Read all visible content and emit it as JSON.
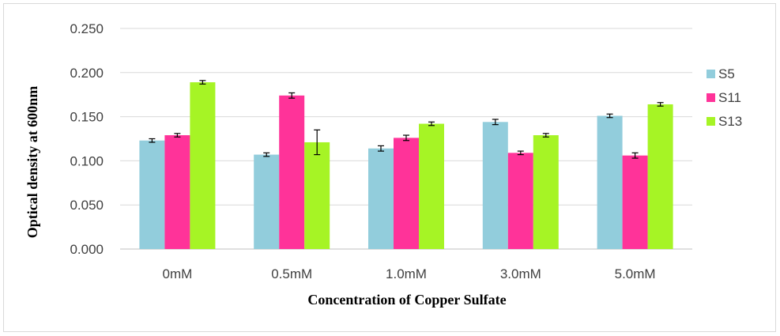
{
  "chart_data": {
    "type": "bar",
    "title": "",
    "xlabel": "Concentration of Copper Sulfate",
    "ylabel": "Optical density at 600nm",
    "categories": [
      "0mM",
      "0.5mM",
      "1.0mM",
      "3.0mM",
      "5.0mM"
    ],
    "ylim": [
      0,
      0.25
    ],
    "yticks": [
      "0.000",
      "0.050",
      "0.100",
      "0.150",
      "0.200",
      "0.250"
    ],
    "grid": true,
    "legend_position": "right",
    "series": [
      {
        "name": "S5",
        "color": "#92CDDC",
        "values": [
          0.123,
          0.107,
          0.114,
          0.144,
          0.151
        ],
        "errors": [
          0.002,
          0.002,
          0.003,
          0.003,
          0.002
        ]
      },
      {
        "name": "S11",
        "color": "#FF3399",
        "values": [
          0.129,
          0.174,
          0.126,
          0.109,
          0.106
        ],
        "errors": [
          0.002,
          0.003,
          0.003,
          0.002,
          0.003
        ]
      },
      {
        "name": "S13",
        "color": "#A6F425",
        "values": [
          0.189,
          0.121,
          0.142,
          0.129,
          0.164
        ],
        "errors": [
          0.002,
          0.014,
          0.002,
          0.002,
          0.002
        ]
      }
    ]
  }
}
